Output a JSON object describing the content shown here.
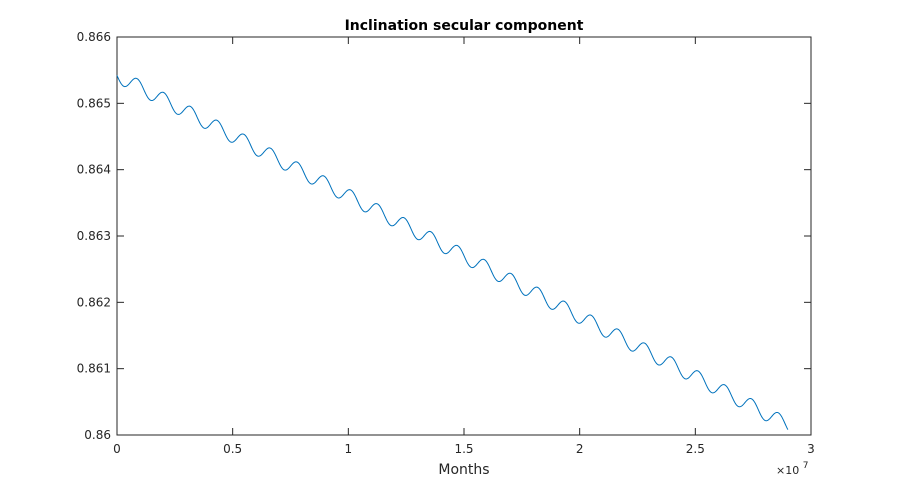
{
  "chart_data": {
    "type": "line",
    "title": "Inclination secular component",
    "xlabel": "Months",
    "ylabel": "",
    "xlim": [
      0,
      3
    ],
    "ylim": [
      0.86,
      0.866
    ],
    "x_multiplier_label": "×10",
    "x_multiplier_exponent": "7",
    "xticks": [
      "0",
      "0.5",
      "1",
      "1.5",
      "2",
      "2.5",
      "3"
    ],
    "yticks": [
      "0.86",
      "0.861",
      "0.862",
      "0.863",
      "0.864",
      "0.865",
      "0.866"
    ],
    "grid": false,
    "series": [
      {
        "color": "#0072BD",
        "trend": {
          "x_start": 0,
          "x_end": 2.9,
          "y_start": 0.86542,
          "y_end": 0.86015
        },
        "oscillation": {
          "amplitude": 0.00011,
          "period": 0.1155
        }
      }
    ]
  }
}
